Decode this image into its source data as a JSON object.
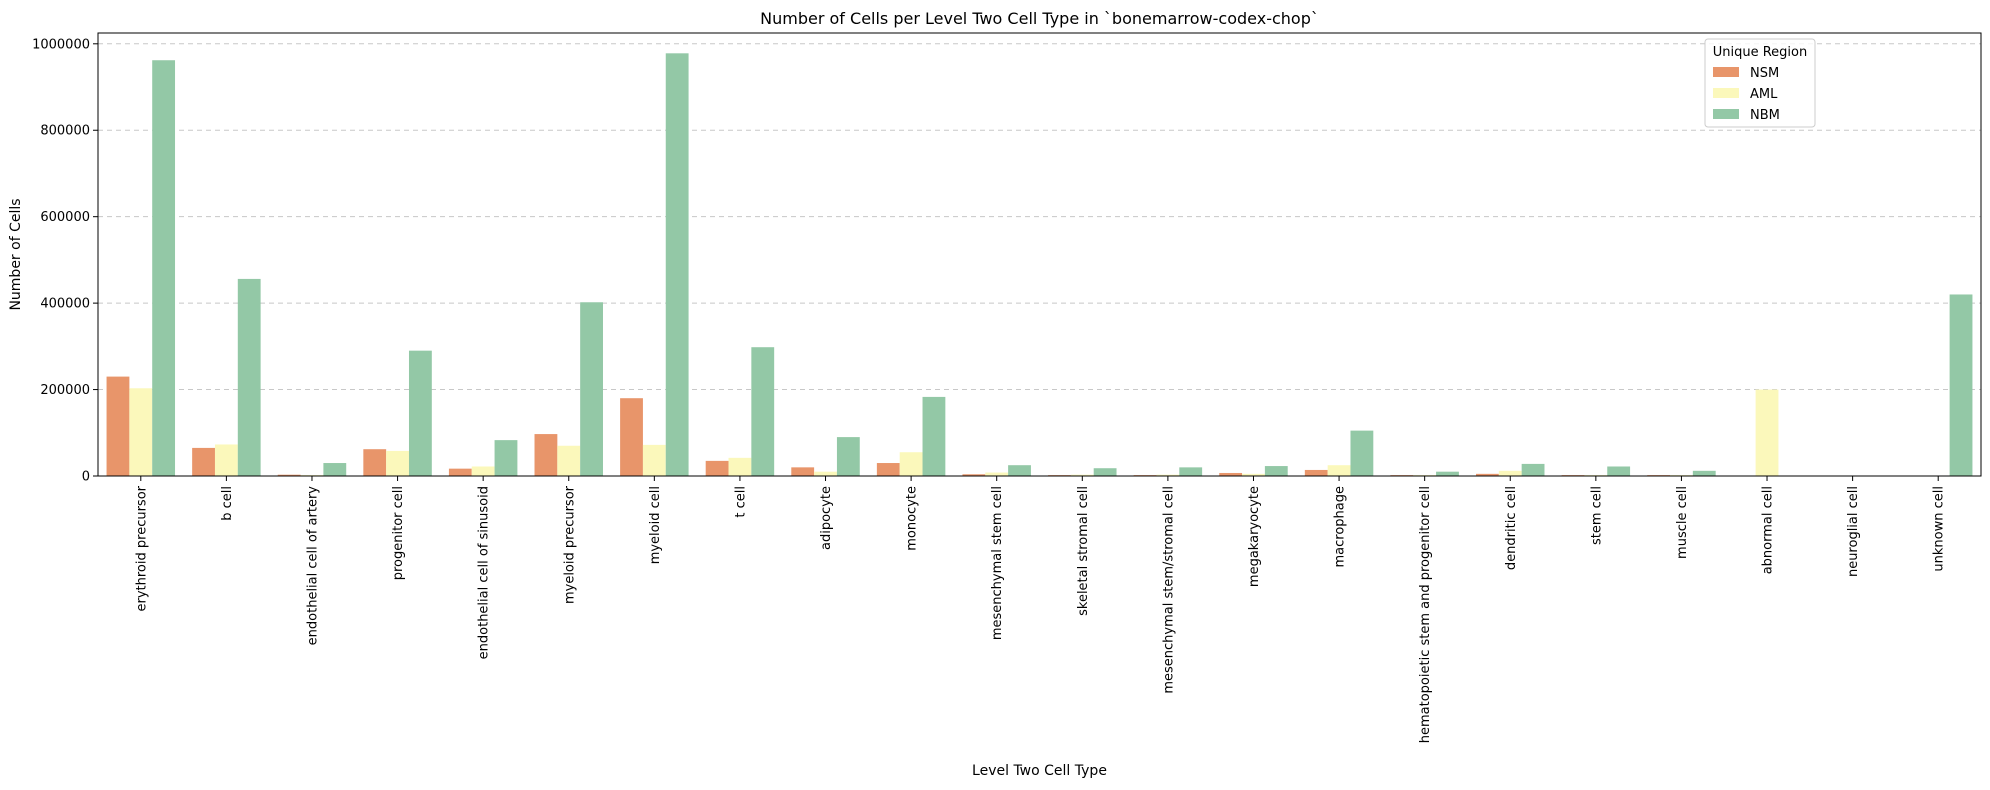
{
  "chart_data": {
    "type": "bar",
    "title": "Number of Cells per Level Two Cell Type in `bonemarrow-codex-chop`",
    "xlabel": "Level Two Cell Type",
    "ylabel": "Number of Cells",
    "ylim": [
      0,
      1025000
    ],
    "yticks": [
      0,
      200000,
      400000,
      600000,
      800000,
      1000000
    ],
    "grid": "y-dashed",
    "legend": {
      "title": "Unique Region",
      "placement": "top-right"
    },
    "categories": [
      "erythroid precursor",
      "b cell",
      "endothelial cell of artery",
      "progenitor cell",
      "endothelial cell of sinusoid",
      "myeloid precursor",
      "myeloid cell",
      "t cell",
      "adipocyte",
      "monocyte",
      "mesenchymal stem cell",
      "skeletal stromal cell",
      "mesenchymal stem/stromal cell",
      "megakaryocyte",
      "macrophage",
      "hematopoietic stem and progenitor cell",
      "dendritic cell",
      "stem cell",
      "muscle cell",
      "abnormal cell",
      "neuroglial cell",
      "unknown cell"
    ],
    "series": [
      {
        "name": "NSM",
        "color": "#e8956a",
        "values": [
          230000,
          65000,
          3000,
          62000,
          17000,
          97000,
          180000,
          35000,
          20000,
          30000,
          4000,
          2000,
          2000,
          7000,
          14000,
          2000,
          5000,
          2000,
          2000,
          0,
          0,
          0
        ]
      },
      {
        "name": "AML",
        "color": "#fbf8bb",
        "values": [
          203000,
          73000,
          2000,
          58000,
          22000,
          70000,
          72000,
          42000,
          10000,
          55000,
          8000,
          3000,
          3000,
          5000,
          25000,
          2000,
          12000,
          2000,
          2000,
          200000,
          0,
          0
        ]
      },
      {
        "name": "NBM",
        "color": "#93c8a6",
        "values": [
          962000,
          456000,
          30000,
          290000,
          83000,
          402000,
          978000,
          298000,
          90000,
          183000,
          25000,
          18000,
          20000,
          23000,
          105000,
          10000,
          28000,
          22000,
          12000,
          0,
          0,
          420000
        ]
      }
    ]
  }
}
